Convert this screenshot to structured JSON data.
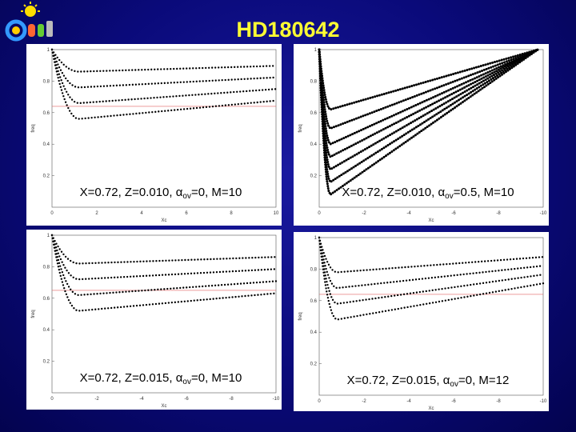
{
  "header": {
    "title": "HD180642"
  },
  "axis": {
    "x_label": "Xc",
    "y_label": "freq",
    "y_ticks": [
      "0.2",
      "0.4",
      "0.6",
      "0.8",
      "1"
    ]
  },
  "panels": [
    {
      "caption": {
        "before": "X=0.72, Z=0.010, ",
        "symbol": "α",
        "sub": "ov",
        "after": "=0, M=10"
      },
      "x_ticks": [
        "0",
        "2",
        "4",
        "6",
        "8",
        "10"
      ]
    },
    {
      "caption": {
        "before": "X=0.72, Z=0.010, ",
        "symbol": "α",
        "sub": "ov",
        "after": "=0.5, M=10"
      },
      "x_ticks": [
        "0",
        "-2",
        "-4",
        "-6",
        "-8",
        "-10"
      ]
    },
    {
      "caption": {
        "before": "X=0.72, Z=0.015, ",
        "symbol": "α",
        "sub": "ov",
        "after": "=0, M=10"
      },
      "x_ticks": [
        "0",
        "-2",
        "-4",
        "-6",
        "-8",
        "-10"
      ]
    },
    {
      "caption": {
        "before": "X=0.72, Z=0.015, ",
        "symbol": "α",
        "sub": "ov",
        "after": "=0, M=12"
      },
      "x_ticks": [
        "0",
        "-2",
        "-4",
        "-6",
        "-8",
        "-10"
      ]
    }
  ]
}
